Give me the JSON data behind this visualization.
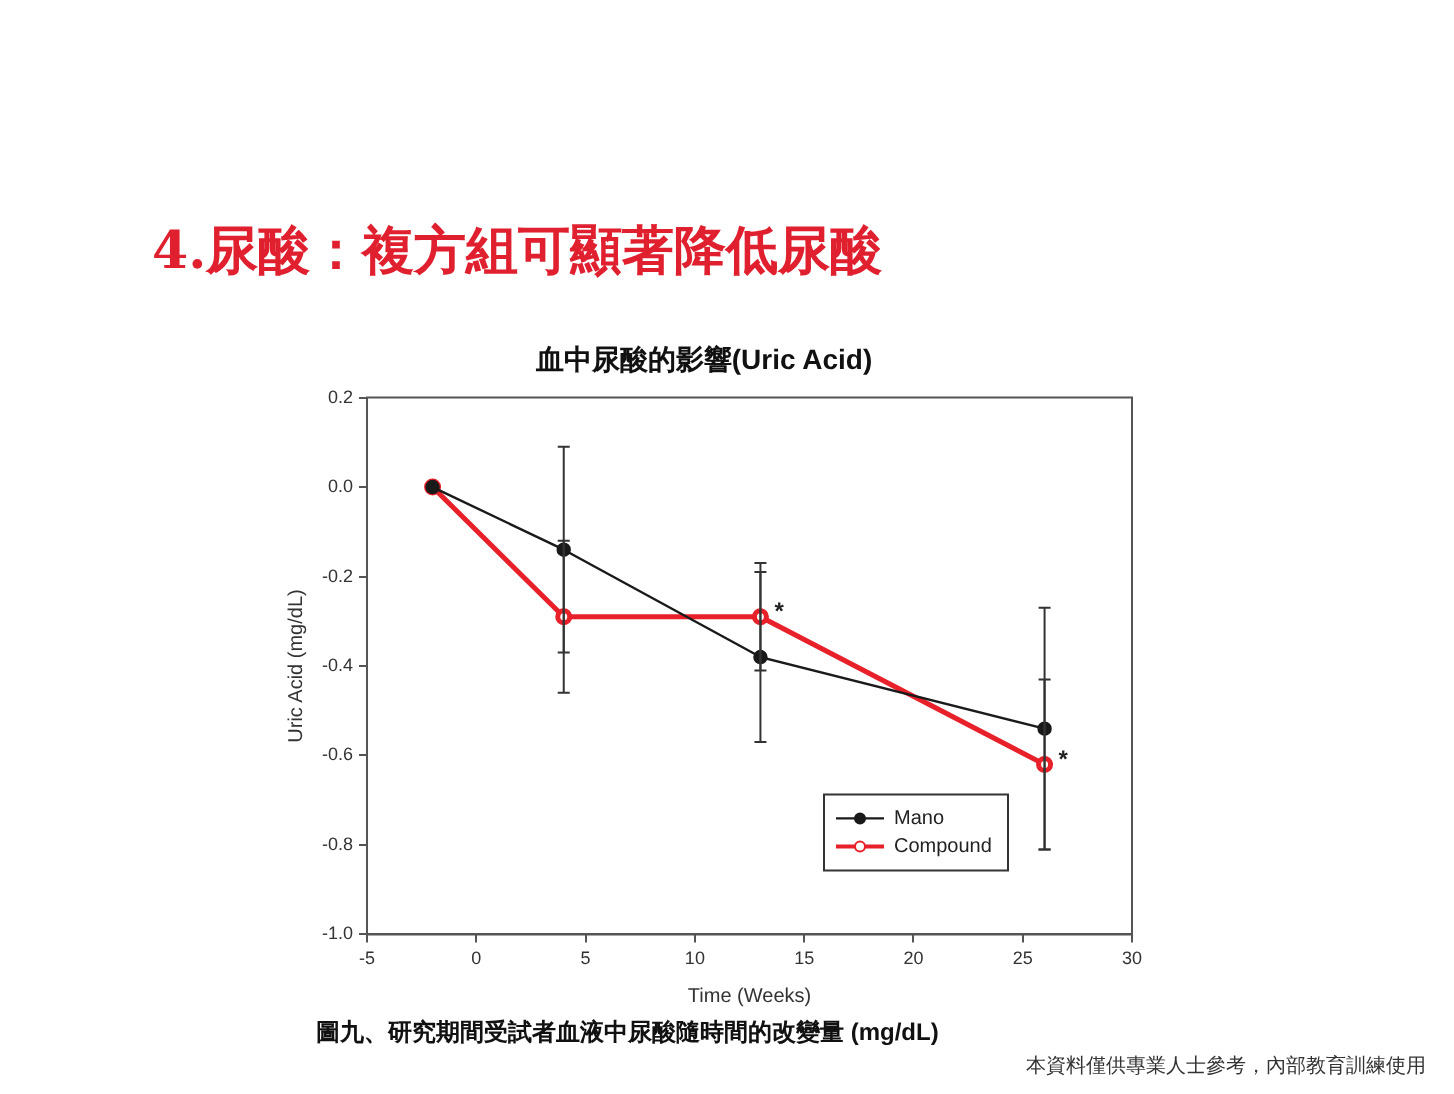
{
  "chart_data": {
    "type": "line",
    "title": "4.尿酸：複方組可顯著降低尿酸",
    "subtitle": "血中尿酸的影響(Uric Acid)",
    "xlabel": "Time (Weeks)",
    "ylabel": "Uric Acid (mg/dL)",
    "series": [
      {
        "name": "Mano",
        "color": "#1a1a1a",
        "marker": "circle",
        "x": [
          -2,
          4,
          13,
          26
        ],
        "values": [
          0,
          -0.14,
          -0.38,
          -0.54
        ],
        "errors": [
          null,
          0.23,
          0.19,
          0.27
        ]
      },
      {
        "name": "Compound",
        "color": "#e8202a",
        "marker": "circle",
        "x": [
          -2,
          4,
          13,
          26
        ],
        "values": [
          0,
          -0.29,
          -0.29,
          -0.62
        ],
        "errors": [
          null,
          0.17,
          0.12,
          0.19
        ]
      }
    ],
    "xlim": [
      -5,
      30
    ],
    "xticks": [
      -5,
      0,
      5,
      10,
      15,
      20,
      25,
      30
    ],
    "ylim": [
      -1,
      0.2
    ],
    "yticks": [
      {
        "value": -1,
        "label": "-1.0"
      },
      -0.8,
      -0.6,
      -0.4,
      -0.2,
      {
        "value": 0,
        "label": "0.0"
      },
      0.2
    ],
    "grid": false,
    "legend": "bottom right",
    "line_style": "solid",
    "annotations": [
      {
        "text": "*",
        "x": 13,
        "y": -0.29
      },
      {
        "text": "*",
        "x": 26,
        "y": -0.62
      },
      "圖九、研究期間受試者血液中尿酸隨時間的改變量 (mg/dL)",
      "本資料僅供專業人士參考，內部教育訓練使用"
    ]
  }
}
